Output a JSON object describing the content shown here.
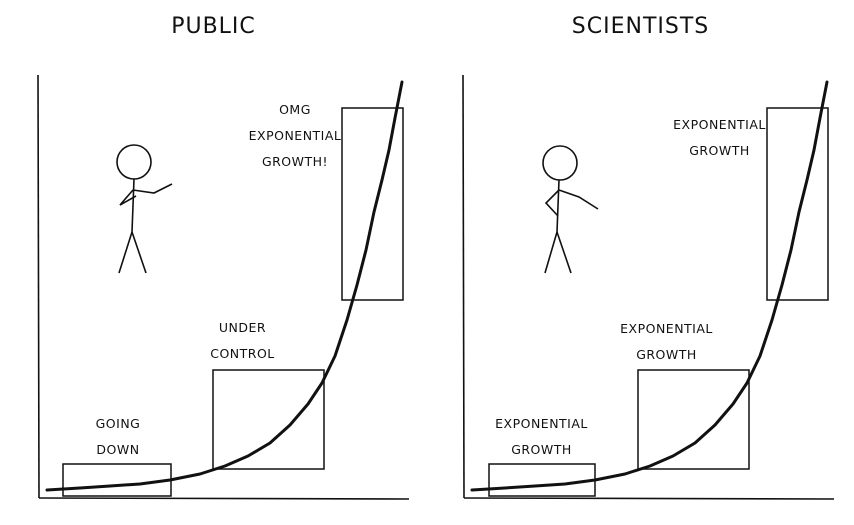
{
  "panels": [
    {
      "title": "PUBLIC",
      "labels": [
        {
          "lines": [
            "OMG",
            "EXPONENTIAL",
            "GROWTH!"
          ]
        },
        {
          "lines": [
            "UNDER",
            "CONTROL"
          ]
        },
        {
          "lines": [
            "GOING",
            "DOWN"
          ]
        }
      ]
    },
    {
      "title": "SCIENTISTS",
      "labels": [
        {
          "lines": [
            "EXPONENTIAL",
            "GROWTH"
          ]
        },
        {
          "lines": [
            "EXPONENTIAL",
            "GROWTH"
          ]
        },
        {
          "lines": [
            "EXPONENTIAL",
            "GROWTH"
          ]
        }
      ]
    }
  ]
}
